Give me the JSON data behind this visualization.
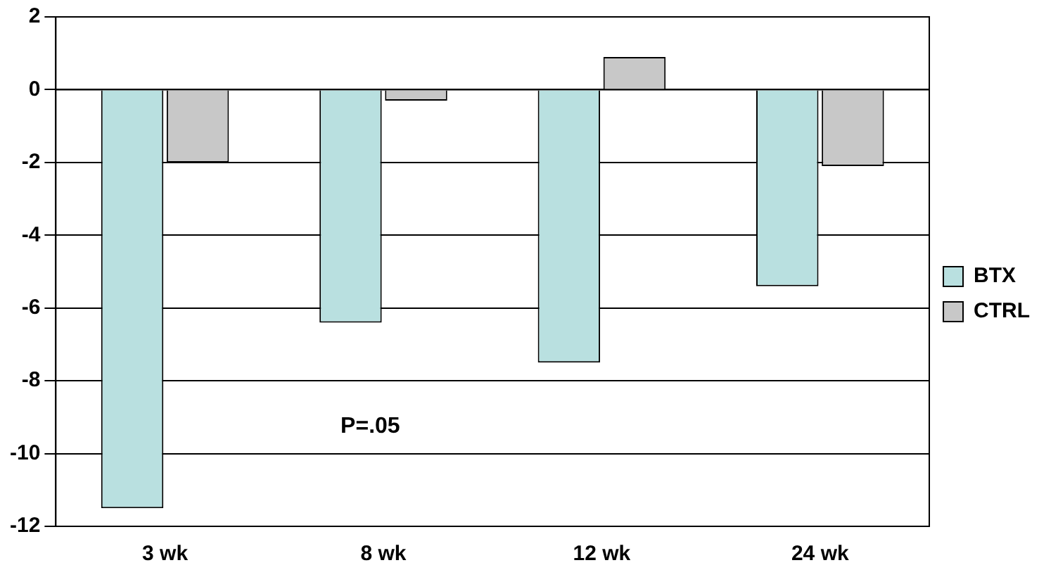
{
  "chart_data": {
    "type": "bar",
    "categories": [
      "3 wk",
      "8 wk",
      "12 wk",
      "24 wk"
    ],
    "series": [
      {
        "name": "BTX",
        "color": "#b9e0e0",
        "values": [
          -11.5,
          -6.4,
          -7.5,
          -5.4
        ]
      },
      {
        "name": "CTRL",
        "color": "#c8c8c8",
        "values": [
          -2.0,
          -0.3,
          0.9,
          -2.1
        ]
      }
    ],
    "ylim": [
      -12,
      2
    ],
    "yticks": [
      -12,
      -10,
      -8,
      -6,
      -4,
      -2,
      0,
      2
    ],
    "grid": "y",
    "legend": "right",
    "annotations": [
      "P=.05"
    ]
  }
}
